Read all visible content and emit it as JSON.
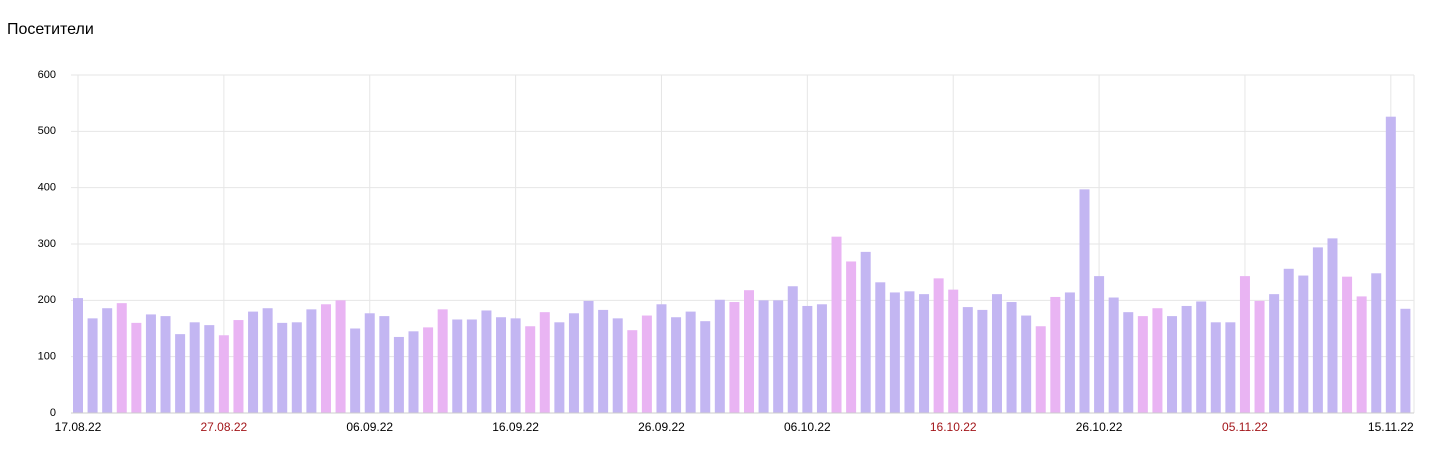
{
  "chart_data": {
    "type": "bar",
    "title": "Посетители",
    "categories": [
      "17.08.22",
      null,
      null,
      null,
      null,
      null,
      null,
      null,
      null,
      null,
      "27.08.22",
      null,
      null,
      null,
      null,
      null,
      null,
      null,
      null,
      null,
      "06.09.22",
      null,
      null,
      null,
      null,
      null,
      null,
      null,
      null,
      null,
      "16.09.22",
      null,
      null,
      null,
      null,
      null,
      null,
      null,
      null,
      null,
      "26.09.22",
      null,
      null,
      null,
      null,
      null,
      null,
      null,
      null,
      null,
      "06.10.22",
      null,
      null,
      null,
      null,
      null,
      null,
      null,
      null,
      null,
      "16.10.22",
      null,
      null,
      null,
      null,
      null,
      null,
      null,
      null,
      null,
      "26.10.22",
      null,
      null,
      null,
      null,
      null,
      null,
      null,
      null,
      null,
      "05.11.22",
      null,
      null,
      null,
      null,
      null,
      null,
      null,
      null,
      null,
      "15.11.22",
      null
    ],
    "values": [
      204,
      168,
      186,
      195,
      160,
      175,
      172,
      140,
      161,
      156,
      138,
      165,
      180,
      186,
      160,
      161,
      184,
      193,
      200,
      150,
      177,
      172,
      135,
      145,
      152,
      184,
      166,
      166,
      182,
      170,
      168,
      154,
      179,
      161,
      177,
      199,
      183,
      168,
      147,
      173,
      193,
      170,
      180,
      163,
      201,
      197,
      218,
      200,
      200,
      225,
      190,
      193,
      313,
      269,
      286,
      232,
      214,
      216,
      211,
      239,
      219,
      188,
      183,
      211,
      197,
      173,
      154,
      206,
      214,
      397,
      243,
      205,
      179,
      172,
      186,
      172,
      190,
      198,
      161,
      161,
      243,
      199,
      211,
      256,
      244,
      294,
      310,
      242,
      207,
      248,
      526,
      185
    ],
    "color": "#c3b6f2",
    "weekend_color": "#e9b4f3",
    "weekend_label_color": "#a3161a",
    "weekend": [
      false,
      false,
      false,
      true,
      true,
      false,
      false,
      false,
      false,
      false,
      true,
      true,
      false,
      false,
      false,
      false,
      false,
      true,
      true,
      false,
      false,
      false,
      false,
      false,
      true,
      true,
      false,
      false,
      false,
      false,
      false,
      true,
      true,
      false,
      false,
      false,
      false,
      false,
      true,
      true,
      false,
      false,
      false,
      false,
      false,
      true,
      true,
      false,
      false,
      false,
      false,
      false,
      true,
      true,
      false,
      false,
      false,
      false,
      false,
      true,
      true,
      false,
      false,
      false,
      false,
      false,
      true,
      true,
      false,
      false,
      false,
      false,
      false,
      true,
      true,
      false,
      false,
      false,
      false,
      false,
      true,
      true,
      false,
      false,
      false,
      false,
      false,
      true,
      true,
      false,
      false,
      false
    ],
    "ylim": [
      0,
      600
    ],
    "yticks": [
      0,
      100,
      200,
      300,
      400,
      500,
      600
    ],
    "grid": true
  }
}
